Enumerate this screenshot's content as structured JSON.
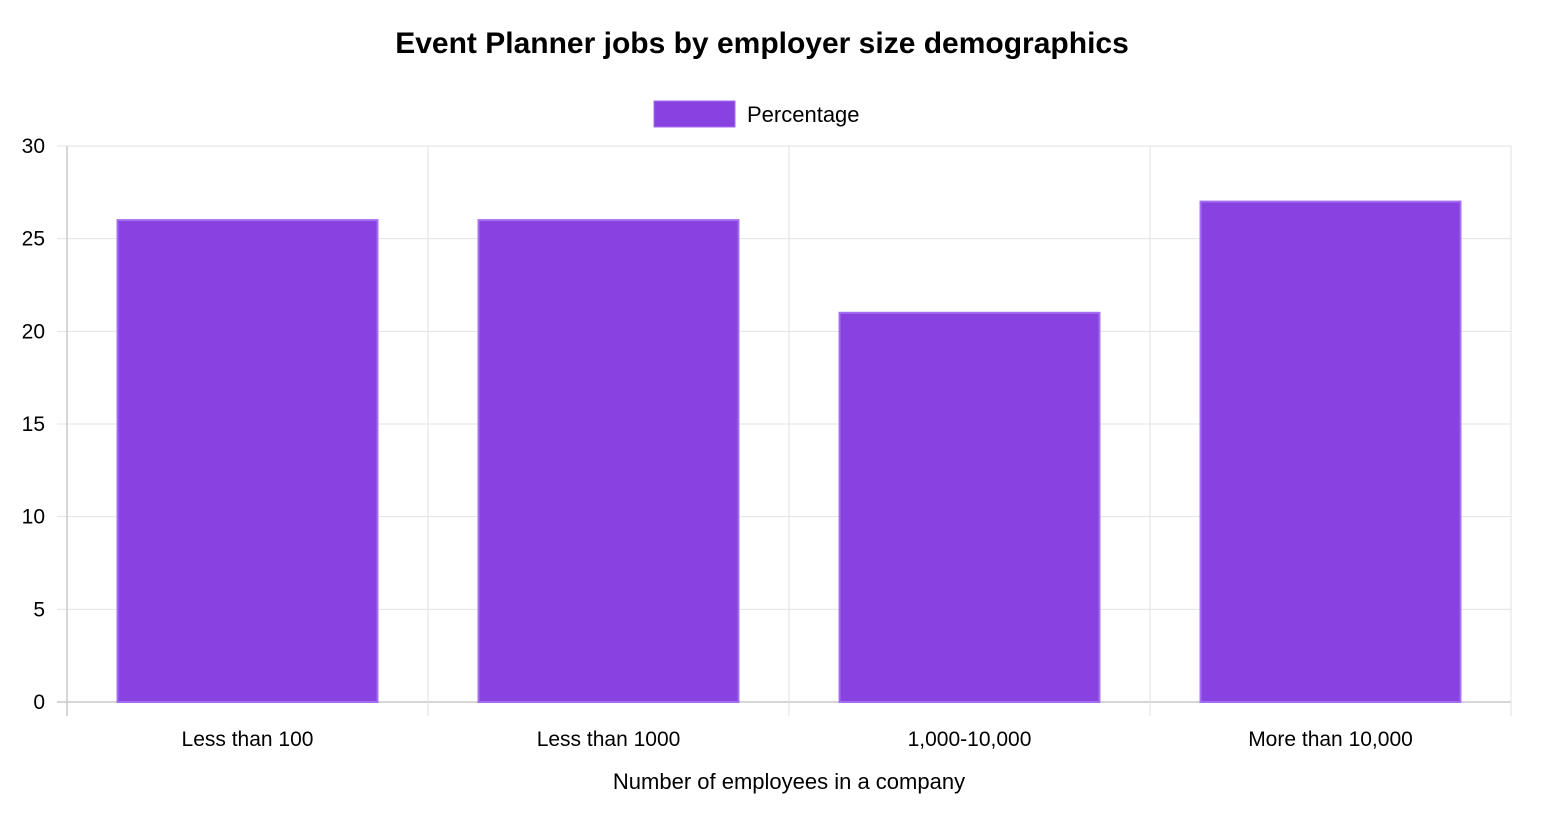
{
  "chart_data": {
    "type": "bar",
    "title": "Event Planner jobs by employer size demographics",
    "xlabel": "Number of employees in a company",
    "ylabel": "",
    "categories": [
      "Less than 100",
      "Less than 1000",
      "1,000-10,000",
      "More than 10,000"
    ],
    "series": [
      {
        "name": "Percentage",
        "values": [
          26,
          26,
          21,
          27
        ]
      }
    ],
    "ylim": [
      0,
      30
    ],
    "yticks": [
      "0",
      "5",
      "10",
      "15",
      "20",
      "25",
      "30"
    ],
    "grid": true,
    "legend_position": "top-center",
    "colors": {
      "bar_fill": "#8742df",
      "bar_border": "#a46cf0"
    }
  }
}
